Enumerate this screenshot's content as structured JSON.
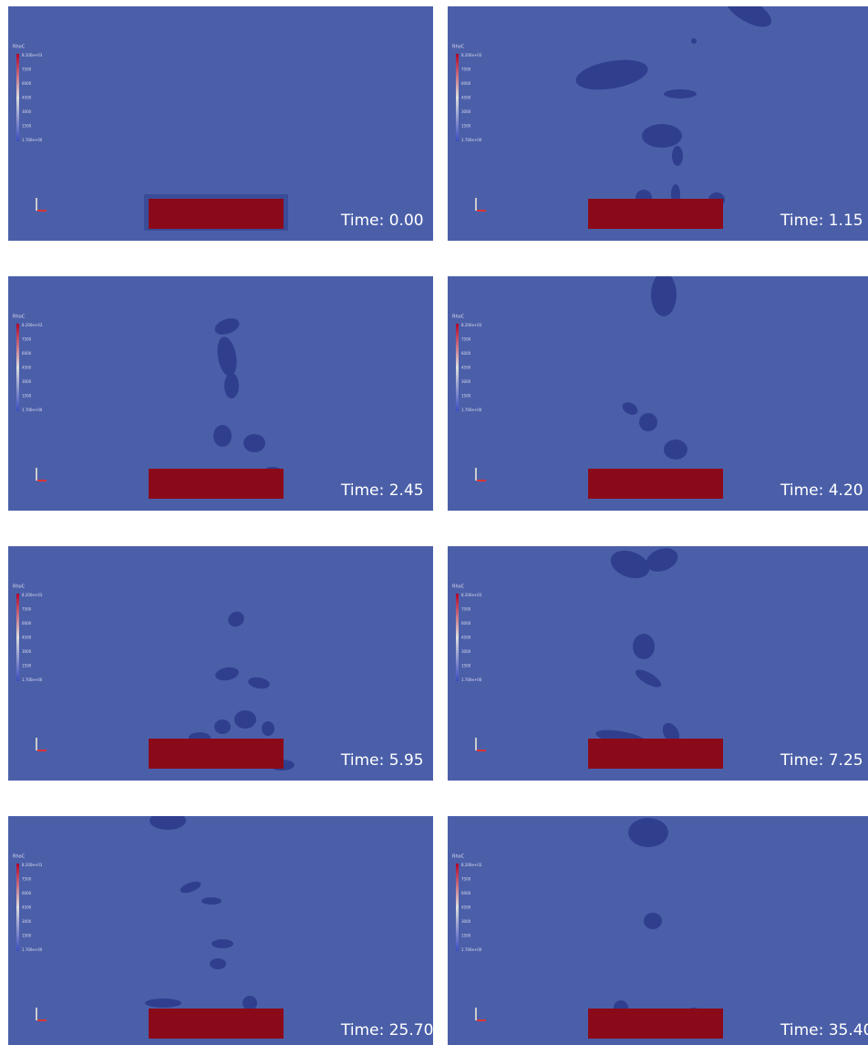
{
  "colorbar": {
    "title": "RhoC",
    "labels": [
      "8.200e+03",
      "7500",
      "6000",
      "4500",
      "3000",
      "1500",
      "1.700e+00"
    ]
  },
  "panels": [
    {
      "time": "Time: 0.00"
    },
    {
      "time": "Time: 1.15"
    },
    {
      "time": "Time: 2.45"
    },
    {
      "time": "Time: 4.20"
    },
    {
      "time": "Time: 5.95"
    },
    {
      "time": "Time: 7.25"
    },
    {
      "time": "Time: 25.70"
    },
    {
      "time": "Time: 35.40"
    }
  ]
}
